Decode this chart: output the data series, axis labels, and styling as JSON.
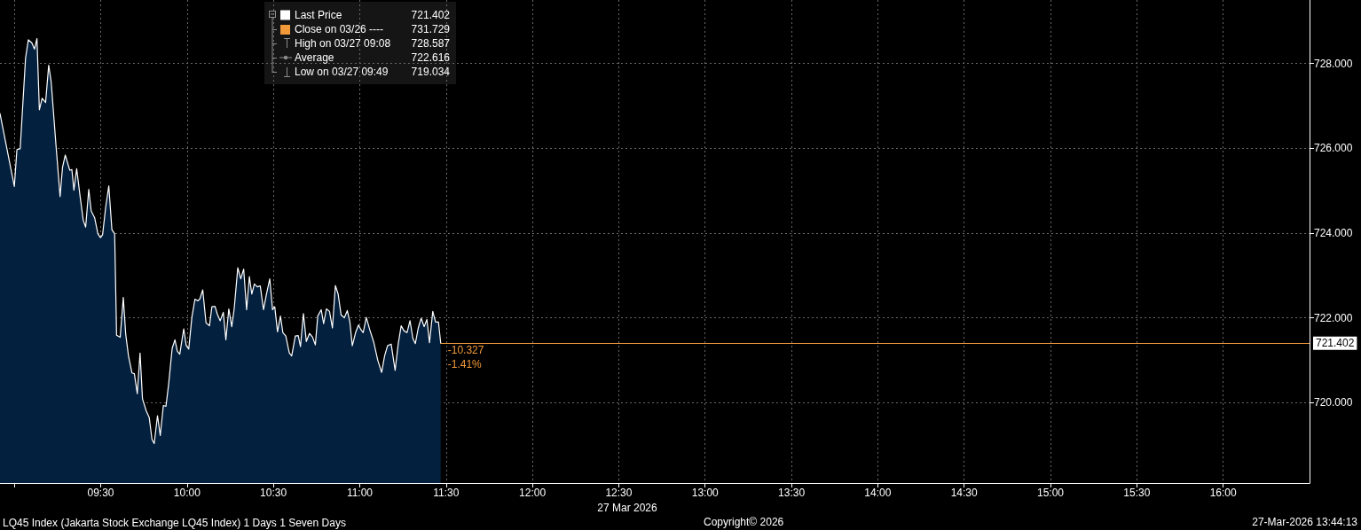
{
  "chart_data": {
    "type": "area",
    "title": "LQ45 Index (Jakarta Stock Exchange LQ45 Index) 1 Days 1 Seven Days",
    "xlabel": "27 Mar 2026",
    "x": [
      8.917,
      9.0,
      9.015,
      9.034,
      9.065,
      9.081,
      9.101,
      9.117,
      9.131,
      9.145,
      9.161,
      9.181,
      9.199,
      9.213,
      9.242,
      9.265,
      9.279,
      9.295,
      9.321,
      9.333,
      9.345,
      9.361,
      9.381,
      9.399,
      9.413,
      9.431,
      9.445,
      9.465,
      9.484,
      9.499,
      9.511,
      9.529,
      9.547,
      9.565,
      9.581,
      9.592,
      9.613,
      9.631,
      9.645,
      9.661,
      9.681,
      9.695,
      9.712,
      9.728,
      9.742,
      9.764,
      9.781,
      9.797,
      9.81,
      9.829,
      9.845,
      9.863,
      9.878,
      9.894,
      9.914,
      9.93,
      9.944,
      9.958,
      9.981,
      9.995,
      10.01,
      10.028,
      10.046,
      10.062,
      10.074,
      10.091,
      10.11,
      10.13,
      10.144,
      10.162,
      10.176,
      10.192,
      10.21,
      10.225,
      10.242,
      10.259,
      10.273,
      10.294,
      10.311,
      10.328,
      10.345,
      10.361,
      10.375,
      10.39,
      10.407,
      10.424,
      10.443,
      10.46,
      10.479,
      10.495,
      10.508,
      10.524,
      10.541,
      10.555,
      10.572,
      10.592,
      10.606,
      10.627,
      10.644,
      10.657,
      10.674,
      10.691,
      10.709,
      10.726,
      10.743,
      10.757,
      10.777,
      10.791,
      10.807,
      10.825,
      10.842,
      10.859,
      10.875,
      10.892,
      10.911,
      10.928,
      10.943,
      10.957,
      10.976,
      10.993,
      11.007,
      11.02,
      11.038,
      11.058,
      11.082,
      11.105,
      11.127,
      11.144,
      11.161,
      11.182,
      11.205,
      11.223,
      11.24,
      11.257,
      11.274,
      11.291,
      11.308,
      11.322,
      11.339,
      11.356,
      11.373,
      11.389,
      11.404,
      11.423,
      11.439,
      11.456,
      11.469
    ],
    "series": [
      {
        "name": "Last Price",
        "color": "#ffffff",
        "values": [
          726.82,
          725.1,
          725.97,
          725.99,
          728.13,
          728.56,
          728.49,
          728.34,
          728.59,
          726.91,
          727.18,
          727.08,
          727.96,
          727.58,
          726.03,
          724.86,
          725.55,
          725.84,
          725.48,
          725.5,
          725.01,
          725.52,
          724.86,
          724.3,
          724.14,
          725.03,
          724.52,
          724.36,
          723.98,
          723.89,
          723.96,
          724.61,
          725.11,
          724.08,
          723.98,
          721.59,
          721.54,
          722.48,
          721.61,
          721.1,
          720.7,
          720.68,
          720.21,
          721.17,
          720.09,
          719.8,
          719.65,
          719.13,
          719.03,
          719.69,
          719.22,
          719.93,
          719.91,
          720.45,
          721.28,
          721.48,
          721.21,
          721.14,
          721.74,
          721.35,
          721.26,
          722.01,
          722.44,
          722.4,
          722.44,
          722.66,
          721.88,
          721.81,
          722.26,
          722.27,
          722.08,
          721.93,
          722.13,
          721.48,
          722.21,
          721.79,
          722.21,
          723.18,
          722.92,
          723.15,
          722.19,
          722.97,
          722.56,
          722.8,
          722.73,
          722.75,
          722.19,
          722.56,
          722.92,
          722.19,
          722.26,
          721.67,
          722.04,
          721.65,
          721.57,
          721.17,
          721.1,
          721.57,
          721.58,
          721.32,
          722.1,
          721.44,
          721.63,
          721.55,
          721.36,
          722.04,
          722.19,
          721.86,
          722.21,
          722.15,
          721.76,
          722.76,
          722.56,
          722.07,
          722.0,
          722.17,
          721.9,
          721.34,
          721.65,
          721.83,
          721.72,
          721.65,
          722.01,
          721.72,
          721.41,
          720.99,
          720.71,
          721.1,
          721.34,
          721.38,
          720.76,
          721.38,
          721.81,
          721.69,
          721.65,
          721.93,
          721.51,
          721.39,
          721.76,
          721.99,
          721.79,
          721.96,
          721.41,
          722.15,
          721.9,
          721.9,
          721.4
        ]
      }
    ],
    "xlim": [
      8.917,
      16.5
    ],
    "xticks": [
      {
        "value": 9,
        "label": null
      },
      {
        "value": 9.5,
        "label": "09:30"
      },
      {
        "value": 10,
        "label": "10:00"
      },
      {
        "value": 10.5,
        "label": "10:30"
      },
      {
        "value": 11,
        "label": "11:00"
      },
      {
        "value": 11.5,
        "label": "11:30"
      },
      {
        "value": 12,
        "label": "12:00"
      },
      {
        "value": 12.5,
        "label": "12:30"
      },
      {
        "value": 13,
        "label": "13:00"
      },
      {
        "value": 13.5,
        "label": "13:30"
      },
      {
        "value": 14,
        "label": "14:00"
      },
      {
        "value": 14.5,
        "label": "14:30"
      },
      {
        "value": 15,
        "label": "15:00"
      },
      {
        "value": 15.5,
        "label": "15:30"
      },
      {
        "value": 16,
        "label": "16:00"
      }
    ],
    "ylim": [
      718.1,
      729.5
    ],
    "yticks": [
      {
        "value": 720,
        "label": "720.000"
      },
      {
        "value": 722,
        "label": "722.000"
      },
      {
        "value": 724,
        "label": "724.000"
      },
      {
        "value": 726,
        "label": "726.000"
      },
      {
        "value": 728,
        "label": "728.000"
      }
    ],
    "ref_lines": [
      {
        "axis": "y",
        "value": 721.402,
        "label": "721.402",
        "color": "#f29a3a"
      }
    ],
    "annotations": [
      "721.402",
      "Close on 03/26 ----",
      "731.729",
      "High on 03/27 09:08",
      "728.587",
      "Average",
      "722.616",
      "Low on 03/27 09:49",
      "719.034",
      "Copyright© 2026",
      "27-Mar-2026 13:44:13",
      {
        "text": "-10.327",
        "x": 11.469,
        "y": 721.23
      },
      {
        "text": "-1.41%",
        "x": 11.469,
        "y": 720.9
      }
    ],
    "grid": true,
    "legend": "top left"
  }
}
